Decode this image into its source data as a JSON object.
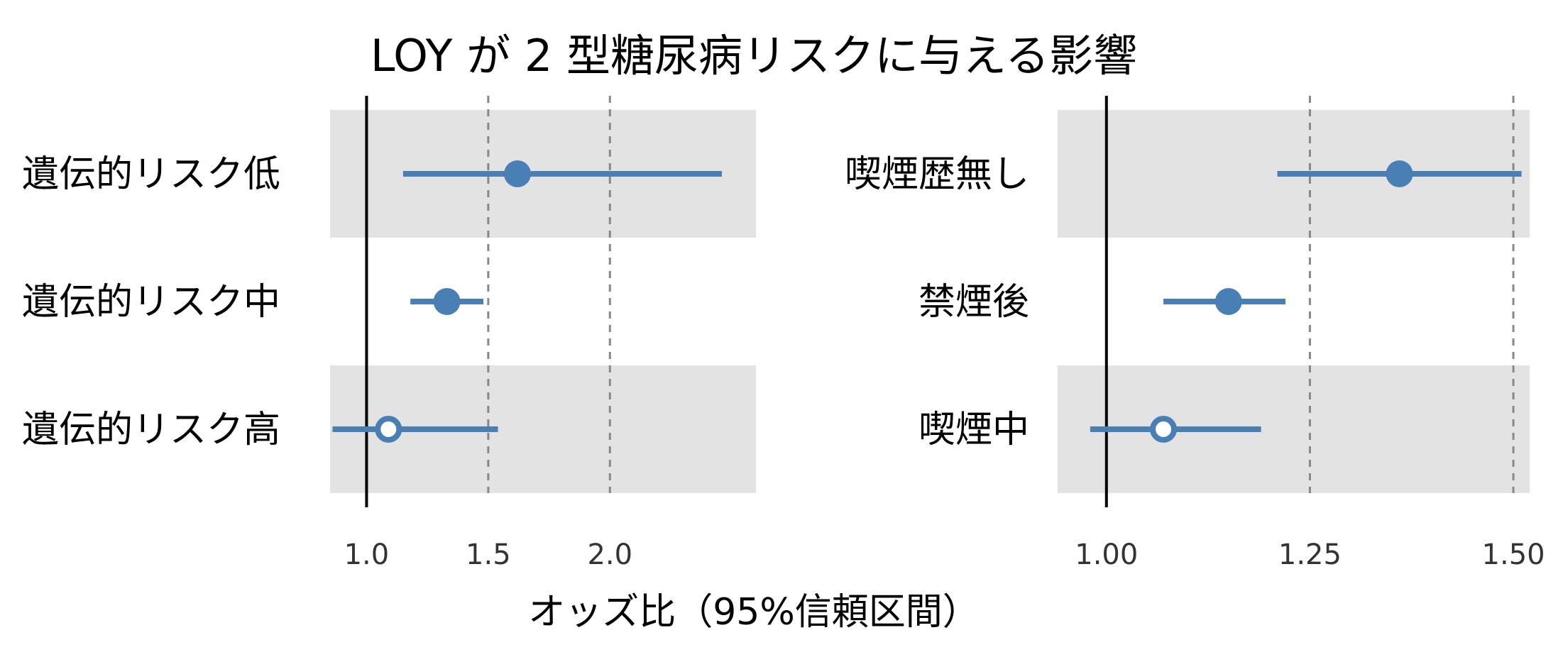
{
  "title": "LOY が 2 型糖尿病リスクに与える影響",
  "xlabel": "オッズ比（95%信頼区間）",
  "chart_data": [
    {
      "type": "forest",
      "panel": "left",
      "reference_line": 1.0,
      "xlim": [
        0.85,
        2.6
      ],
      "x_ticks": [
        1.0,
        1.5,
        2.0
      ],
      "x_tick_labels": [
        "1.0",
        "1.5",
        "2.0"
      ],
      "grid": "dashed vertical at non-reference ticks",
      "colors": {
        "point": "#4a7fb5",
        "band": "#e3e3e3",
        "reference": "#000000"
      },
      "categories": [
        "遺伝的リスク低",
        "遺伝的リスク中",
        "遺伝的リスク高"
      ],
      "points": [
        {
          "label": "遺伝的リスク低",
          "estimate": 1.62,
          "lower": 1.15,
          "upper": 2.46,
          "marker": "filled"
        },
        {
          "label": "遺伝的リスク中",
          "estimate": 1.33,
          "lower": 1.18,
          "upper": 1.48,
          "marker": "filled"
        },
        {
          "label": "遺伝的リスク高",
          "estimate": 1.09,
          "lower": 0.86,
          "upper": 1.54,
          "marker": "open"
        }
      ]
    },
    {
      "type": "forest",
      "panel": "right",
      "reference_line": 1.0,
      "xlim": [
        0.94,
        1.52
      ],
      "x_ticks": [
        1.0,
        1.25,
        1.5
      ],
      "x_tick_labels": [
        "1.00",
        "1.25",
        "1.50"
      ],
      "grid": "dashed vertical at non-reference ticks",
      "colors": {
        "point": "#4a7fb5",
        "band": "#e3e3e3",
        "reference": "#000000"
      },
      "categories": [
        "喫煙歴無し",
        "禁煙後",
        "喫煙中"
      ],
      "points": [
        {
          "label": "喫煙歴無し",
          "estimate": 1.36,
          "lower": 1.21,
          "upper": 1.51,
          "marker": "filled"
        },
        {
          "label": "禁煙後",
          "estimate": 1.15,
          "lower": 1.07,
          "upper": 1.22,
          "marker": "filled"
        },
        {
          "label": "喫煙中",
          "estimate": 1.07,
          "lower": 0.98,
          "upper": 1.19,
          "marker": "open"
        }
      ]
    }
  ]
}
